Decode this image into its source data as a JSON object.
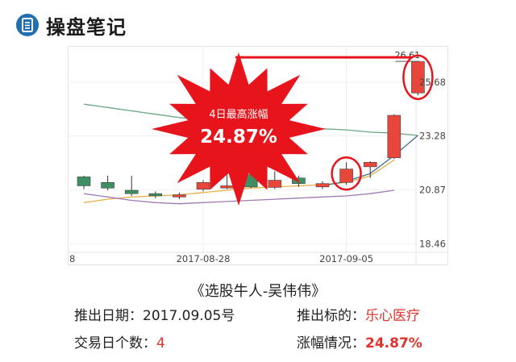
{
  "header": {
    "title": "操盘笔记",
    "icon": "notebook-icon",
    "icon_color": "#1f6fb2"
  },
  "chart_data": {
    "type": "candlestick",
    "x_tick_labels": [
      "8",
      "2017-08-28",
      "2017-09-05"
    ],
    "y_ticks": [
      "26.61",
      "25.68",
      "23.28",
      "20.87",
      "18.46"
    ],
    "ylim": [
      17.5,
      27.3
    ],
    "up_color": "#e8463a",
    "down_color": "#3e8f62",
    "candles": [
      {
        "o": 21.45,
        "c": 21.05,
        "h": 21.5,
        "l": 20.9
      },
      {
        "o": 21.2,
        "c": 20.95,
        "h": 21.5,
        "l": 20.85
      },
      {
        "o": 20.85,
        "c": 20.7,
        "h": 21.5,
        "l": 20.6
      },
      {
        "o": 20.7,
        "c": 20.6,
        "h": 20.8,
        "l": 20.5
      },
      {
        "o": 20.55,
        "c": 20.65,
        "h": 20.75,
        "l": 20.45
      },
      {
        "o": 20.9,
        "c": 21.2,
        "h": 21.3,
        "l": 20.8
      },
      {
        "o": 20.95,
        "c": 21.05,
        "h": 21.55,
        "l": 20.9
      },
      {
        "o": 21.55,
        "c": 21.0,
        "h": 21.8,
        "l": 20.95
      },
      {
        "o": 20.98,
        "c": 21.3,
        "h": 21.7,
        "l": 20.9
      },
      {
        "o": 21.4,
        "c": 21.15,
        "h": 21.5,
        "l": 21.0
      },
      {
        "o": 21.0,
        "c": 21.15,
        "h": 21.25,
        "l": 20.9
      },
      {
        "o": 21.2,
        "c": 21.8,
        "h": 22.1,
        "l": 21.1
      },
      {
        "o": 21.9,
        "c": 22.1,
        "h": 22.15,
        "l": 21.4
      },
      {
        "o": 22.3,
        "c": 24.2,
        "h": 24.25,
        "l": 22.25
      },
      {
        "o": 25.2,
        "c": 26.6,
        "h": 26.61,
        "l": 25.1
      }
    ],
    "ma_lines": [
      {
        "color": "#6aa886",
        "values": [
          24.7,
          24.55,
          24.4,
          24.25,
          24.1,
          24.0,
          23.9,
          23.8,
          23.7,
          23.65,
          23.6,
          23.55,
          23.45,
          23.4,
          23.3
        ]
      },
      {
        "color": "#e9b04a",
        "values": [
          20.3,
          20.45,
          20.55,
          20.6,
          20.65,
          20.75,
          20.85,
          20.95,
          21.0,
          21.05,
          21.1,
          21.2,
          21.5,
          22.2,
          null
        ]
      },
      {
        "color": "#a07ab5",
        "values": [
          20.7,
          20.55,
          20.4,
          20.3,
          20.25,
          20.3,
          20.35,
          20.4,
          20.45,
          20.5,
          20.55,
          20.6,
          20.7,
          20.85,
          null
        ]
      },
      {
        "color": "#3e6f8e",
        "values": [
          null,
          null,
          null,
          null,
          null,
          null,
          null,
          null,
          null,
          null,
          21.05,
          21.25,
          21.6,
          22.4,
          23.3
        ]
      }
    ],
    "high_label": "26.61",
    "annotation": {
      "line1": "4日最高涨幅",
      "line2": "24.87%",
      "color": "#e8141c"
    }
  },
  "caption": "《选股牛人-吴伟伟》",
  "info": {
    "date_label": "推出日期：",
    "date_value": "2017.09.05号",
    "target_label": "推出标的：",
    "target_value": "乐心医疗",
    "days_label": "交易日个数：",
    "days_value": "4",
    "gain_label": "涨幅情况：",
    "gain_value": "24.87%"
  }
}
